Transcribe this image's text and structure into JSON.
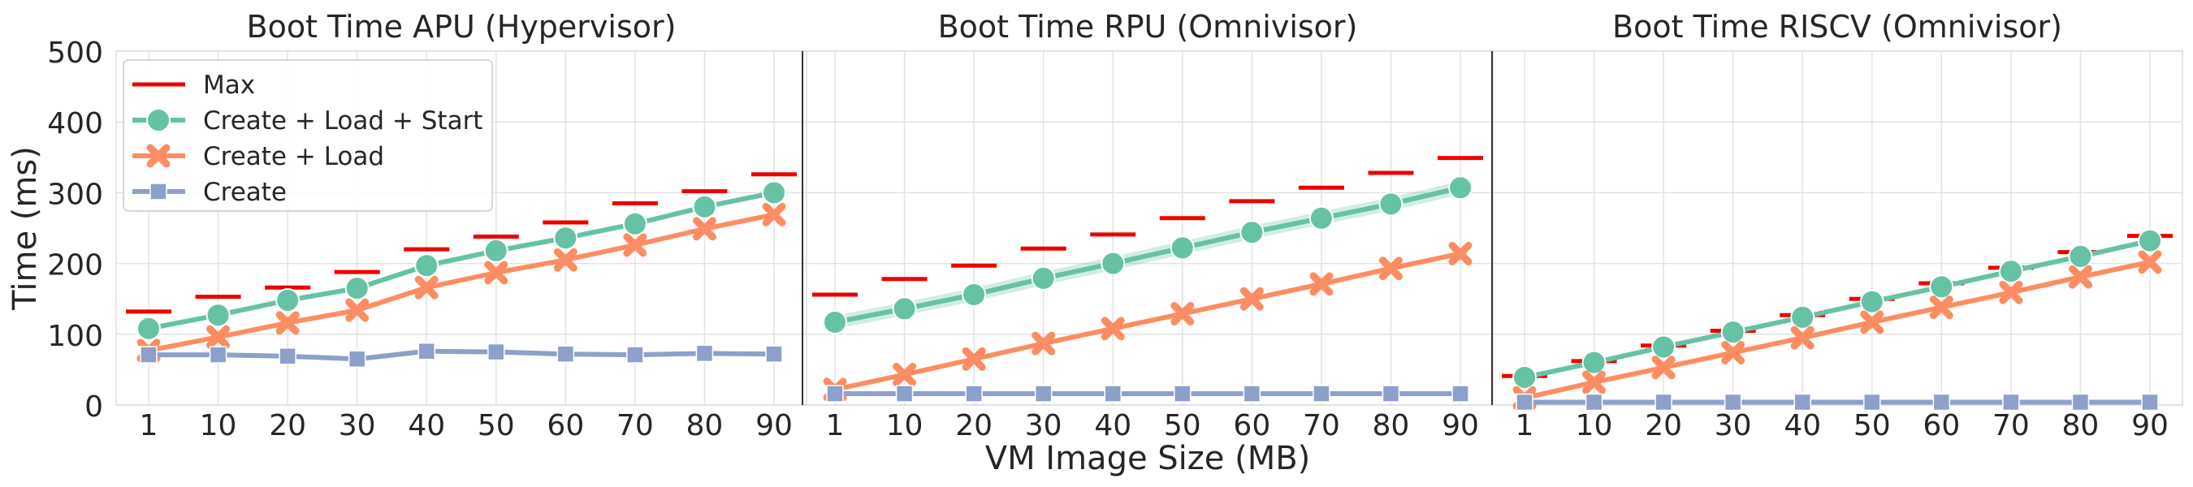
{
  "figure": {
    "ylabel": "Time (ms)",
    "xlabel": "VM Image Size (MB)"
  },
  "legend": {
    "placement": "upper-left of first panel",
    "entries": [
      {
        "key": "max",
        "label": "Max"
      },
      {
        "key": "cls",
        "label": "Create + Load + Start"
      },
      {
        "key": "cl",
        "label": "Create + Load"
      },
      {
        "key": "c",
        "label": "Create"
      }
    ]
  },
  "colors": {
    "max": "#ee0000",
    "cls": "#66c2a5",
    "cl": "#fc8d62",
    "c": "#8da0cb",
    "grid": "#e3e3e3",
    "frame": "#dddddd",
    "divider": "#333333"
  },
  "chart_data": [
    {
      "type": "line",
      "title": "Boot Time APU (Hypervisor)",
      "categories": [
        "1",
        "10",
        "20",
        "30",
        "40",
        "50",
        "60",
        "70",
        "80",
        "90"
      ],
      "ylim": [
        0,
        500
      ],
      "yticks": [
        0,
        100,
        200,
        300,
        400,
        500
      ],
      "grid": true,
      "series": [
        {
          "key": "max",
          "name": "Max",
          "marker": "dash",
          "values": [
            132,
            153,
            166,
            188,
            220,
            238,
            258,
            285,
            302,
            326
          ]
        },
        {
          "key": "cls",
          "name": "Create + Load + Start",
          "marker": "circle",
          "values": [
            108,
            127,
            148,
            165,
            197,
            218,
            236,
            256,
            280,
            300
          ]
        },
        {
          "key": "cl",
          "name": "Create + Load",
          "marker": "x",
          "values": [
            77,
            96,
            116,
            134,
            166,
            187,
            205,
            226,
            249,
            269
          ]
        },
        {
          "key": "c",
          "name": "Create",
          "marker": "square",
          "values": [
            71,
            71,
            69,
            65,
            76,
            75,
            72,
            71,
            73,
            72
          ]
        }
      ]
    },
    {
      "type": "line",
      "title": "Boot Time RPU (Omnivisor)",
      "categories": [
        "1",
        "10",
        "20",
        "30",
        "40",
        "50",
        "60",
        "70",
        "80",
        "90"
      ],
      "ylim": [
        0,
        500
      ],
      "yticks": [
        0,
        100,
        200,
        300,
        400,
        500
      ],
      "grid": true,
      "series": [
        {
          "key": "max",
          "name": "Max",
          "marker": "dash",
          "values": [
            156,
            178,
            197,
            221,
            241,
            264,
            288,
            307,
            328,
            349
          ]
        },
        {
          "key": "cls",
          "name": "Create + Load + Start",
          "marker": "circle",
          "values": [
            117,
            136,
            156,
            179,
            200,
            222,
            244,
            264,
            284,
            307
          ]
        },
        {
          "key": "cl",
          "name": "Create + Load",
          "marker": "x",
          "values": [
            22,
            43,
            65,
            87,
            108,
            129,
            150,
            171,
            193,
            214
          ]
        },
        {
          "key": "c",
          "name": "Create",
          "marker": "square",
          "values": [
            16,
            16,
            16,
            16,
            16,
            16,
            16,
            16,
            16,
            16
          ]
        }
      ]
    },
    {
      "type": "line",
      "title": "Boot Time RISCV (Omnivisor)",
      "categories": [
        "1",
        "10",
        "20",
        "30",
        "40",
        "50",
        "60",
        "70",
        "80",
        "90"
      ],
      "ylim": [
        0,
        500
      ],
      "yticks": [
        0,
        100,
        200,
        300,
        400,
        500
      ],
      "grid": true,
      "series": [
        {
          "key": "max",
          "name": "Max",
          "marker": "dash",
          "values": [
            41,
            62,
            84,
            105,
            127,
            150,
            172,
            194,
            216,
            239
          ]
        },
        {
          "key": "cls",
          "name": "Create + Load + Start",
          "marker": "circle",
          "values": [
            39,
            60,
            82,
            103,
            124,
            146,
            167,
            189,
            210,
            232
          ]
        },
        {
          "key": "cl",
          "name": "Create + Load",
          "marker": "x",
          "values": [
            10,
            32,
            53,
            74,
            95,
            117,
            138,
            159,
            181,
            202
          ]
        },
        {
          "key": "c",
          "name": "Create",
          "marker": "square",
          "values": [
            4,
            4,
            4,
            4,
            4,
            4,
            4,
            4,
            4,
            4
          ]
        }
      ]
    }
  ]
}
